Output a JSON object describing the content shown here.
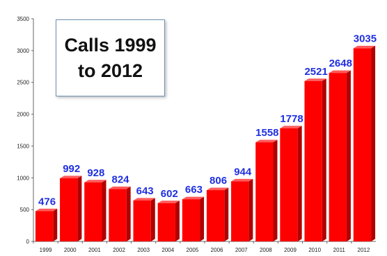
{
  "chart_data": {
    "type": "bar",
    "title": "Calls 1999\nto 2012",
    "categories": [
      "1999",
      "2000",
      "2001",
      "2002",
      "2003",
      "2004",
      "2005",
      "2006",
      "2007",
      "2008",
      "2009",
      "2010",
      "2011",
      "2012"
    ],
    "series": [
      {
        "values": [
          476,
          992,
          928,
          824,
          643,
          602,
          663,
          806,
          944,
          1558,
          1778,
          2521,
          2648,
          3035
        ]
      }
    ],
    "data_labels": [
      "476",
      "992",
      "928",
      "824",
      "643",
      "602",
      "663",
      "806",
      "944",
      "1558",
      "1778",
      "2521",
      "2648",
      "3035"
    ],
    "yticks": [
      "0",
      "500",
      "1000",
      "1500",
      "2000",
      "2500",
      "3000",
      "3500"
    ],
    "ylim": [
      0,
      3500
    ],
    "grid": false,
    "legend": "none",
    "colors": {
      "bar": "#ff0000",
      "bar_shade": "#b00000",
      "label": "#1f2fe0"
    }
  }
}
